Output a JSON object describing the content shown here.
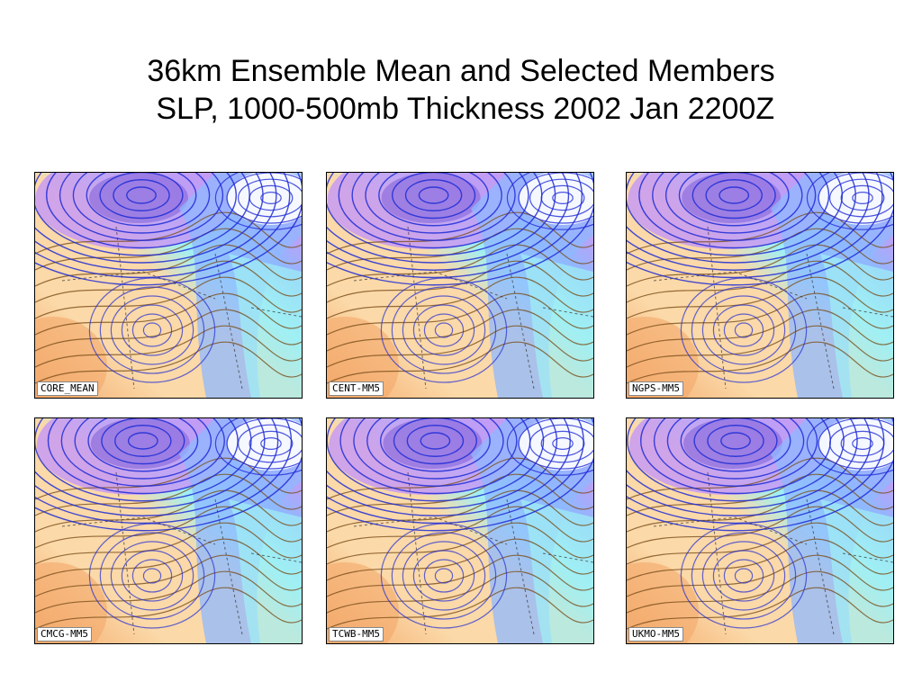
{
  "slide": {
    "title_line1": "36km Ensemble Mean and Selected Members",
    "title_line2": " SLP, 1000-500mb Thickness 2002 Jan 2200Z"
  },
  "panels": [
    {
      "label": "CORE_MEAN"
    },
    {
      "label": "CENT-MM5"
    },
    {
      "label": "NGPS-MM5"
    },
    {
      "label": "CMCG-MM5"
    },
    {
      "label": "TCWB-MM5"
    },
    {
      "label": "UKMO-MM5"
    }
  ],
  "colors": {
    "warm": "#fbd9a8",
    "warm_dark": "#f4a86a",
    "cold": "#8fb8ff",
    "cold_light": "#9ff0f4",
    "purple": "#c79af3",
    "purple_deep": "#7d5fd7",
    "isobar": "#1f2bd6",
    "thickness": "#7a4e1a"
  }
}
